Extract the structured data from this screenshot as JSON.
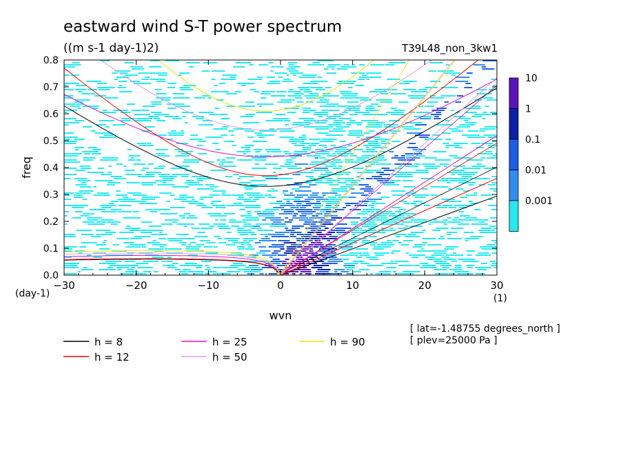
{
  "chart_data": {
    "type": "heatmap",
    "title": "eastward wind S-T power spectrum",
    "subtitle": "((m s-1 day-1)2)",
    "run_label": "T39L48_non_3kw1",
    "xlabel": "wvn",
    "ylabel": "freq",
    "x_unit": "(1)",
    "y_unit": "(day-1)",
    "xlim": [
      -30,
      30
    ],
    "ylim": [
      0,
      0.8
    ],
    "x_ticks": [
      "-30",
      "-20",
      "-10",
      "0",
      "10",
      "20",
      "30"
    ],
    "y_ticks": [
      "0.0",
      "0.1",
      "0.2",
      "0.3",
      "0.4",
      "0.5",
      "0.6",
      "0.7",
      "0.8"
    ],
    "colorbar": {
      "labels": [
        "10",
        "1",
        "0.1",
        "0.01",
        "0.001"
      ],
      "colors": [
        "#5a14b8",
        "#0a1fa8",
        "#1a5ee8",
        "#2e8ef0",
        "#22eaf0"
      ]
    },
    "annotations": [
      "[ lat=-1.48755 degrees_north ]",
      "[ plev=25000 Pa ]"
    ],
    "legend": [
      {
        "label": "h =  8",
        "color": "#000000"
      },
      {
        "label": "h = 12",
        "color": "#ff0000"
      },
      {
        "label": "h = 25",
        "color": "#e010c8"
      },
      {
        "label": "h = 50",
        "color": "#dca0e0"
      },
      {
        "label": "h = 90",
        "color": "#f2e000"
      }
    ],
    "series": [
      {
        "name": "h =  8",
        "kelvin": [
          [
            0,
            0
          ],
          [
            10,
            0.098
          ],
          [
            20,
            0.195
          ],
          [
            30,
            0.293
          ]
        ],
        "ig1_min_freq": 0.33,
        "ig1_freq_at_-30": 0.63,
        "rossby_freq_at_-30": 0.053
      },
      {
        "name": "h = 12",
        "kelvin": [
          [
            0,
            0
          ],
          [
            10,
            0.12
          ],
          [
            20,
            0.24
          ],
          [
            30,
            0.359
          ]
        ],
        "ig1_min_freq": 0.37,
        "ig1_freq_at_-30": 0.77,
        "rossby_freq_at_-30": 0.055
      },
      {
        "name": "h = 25",
        "kelvin": [
          [
            0,
            0
          ],
          [
            10,
            0.173
          ],
          [
            20,
            0.346
          ],
          [
            30,
            0.519
          ]
        ],
        "ig1_min_freq": 0.44
      },
      {
        "name": "h = 50",
        "kelvin": [
          [
            0,
            0
          ],
          [
            10,
            0.245
          ],
          [
            20,
            0.49
          ],
          [
            30,
            0.733
          ]
        ],
        "ig1_min_freq": 0.54
      },
      {
        "name": "h = 90",
        "kelvin": [
          [
            0,
            0
          ],
          [
            10,
            0.33
          ],
          [
            20,
            0.66
          ]
        ],
        "ig1_min_freq": 0.61,
        "rossby_max_freq": 0.1
      }
    ]
  }
}
